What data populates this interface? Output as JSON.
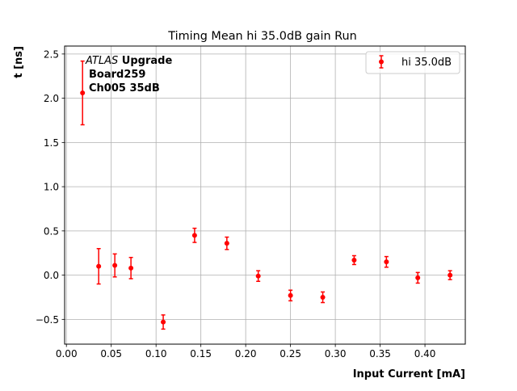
{
  "chart_data": {
    "type": "scatter",
    "title": "Timing Mean hi 35.0dB gain Run",
    "xlabel": "Input Current [mA]",
    "ylabel": "t [ns]",
    "xlim": [
      -0.002,
      0.445
    ],
    "ylim": [
      -0.78,
      2.59
    ],
    "xticks": [
      0.0,
      0.05,
      0.1,
      0.15,
      0.2,
      0.25,
      0.3,
      0.35,
      0.4
    ],
    "xtick_labels": [
      "0.00",
      "0.05",
      "0.10",
      "0.15",
      "0.20",
      "0.25",
      "0.30",
      "0.35",
      "0.40"
    ],
    "yticks": [
      -0.5,
      0.0,
      0.5,
      1.0,
      1.5,
      2.0,
      2.5
    ],
    "ytick_labels": [
      "−0.5",
      "0.0",
      "0.5",
      "1.0",
      "1.5",
      "2.0",
      "2.5"
    ],
    "grid": true,
    "legend_position": "top-right",
    "annotation": {
      "line1_italic": "ATLAS",
      "line1_bold": " Upgrade",
      "line2": "Board259",
      "line3": "Ch005 35dB"
    },
    "series": [
      {
        "name": "hi 35.0dB",
        "color": "#ff0000",
        "marker": "circle",
        "x": [
          0.018,
          0.036,
          0.054,
          0.072,
          0.108,
          0.143,
          0.179,
          0.214,
          0.25,
          0.286,
          0.321,
          0.357,
          0.392,
          0.428
        ],
        "y": [
          2.06,
          0.1,
          0.11,
          0.08,
          -0.53,
          0.45,
          0.36,
          -0.01,
          -0.23,
          -0.25,
          0.17,
          0.15,
          -0.03,
          0.0
        ],
        "yerr": [
          0.36,
          0.2,
          0.13,
          0.12,
          0.08,
          0.08,
          0.07,
          0.06,
          0.06,
          0.06,
          0.05,
          0.06,
          0.06,
          0.05
        ]
      }
    ]
  }
}
